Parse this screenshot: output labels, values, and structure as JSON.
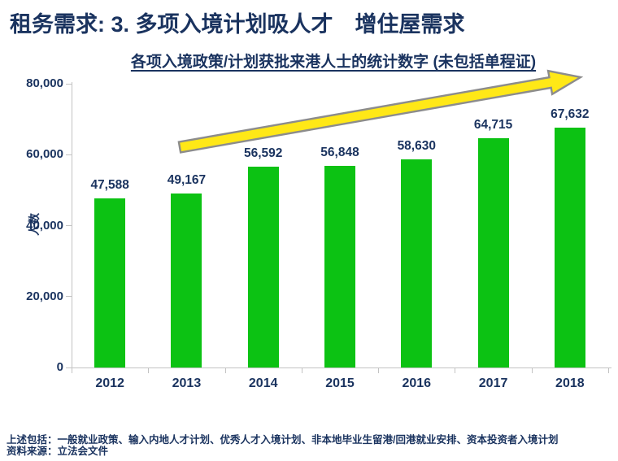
{
  "header": {
    "title": "租务需求: 3. 多项入境计划吸人才　增住屋需求"
  },
  "chart_data": {
    "type": "bar",
    "title": "各项入境政策/计划获批来港人士的统计数字 (未包括单程证)",
    "categories": [
      "2012",
      "2013",
      "2014",
      "2015",
      "2016",
      "2017",
      "2018"
    ],
    "values": [
      47588,
      49167,
      56592,
      56848,
      58630,
      64715,
      67632
    ],
    "value_labels": [
      "47,588",
      "49,167",
      "56,592",
      "56,848",
      "58,630",
      "64,715",
      "67,632"
    ],
    "xlabel": "",
    "ylabel": "人数",
    "ylim": [
      0,
      80000
    ],
    "yticks": [
      0,
      20000,
      40000,
      60000,
      80000
    ],
    "ytick_labels": [
      "0",
      "20,000",
      "40,000",
      "60,000",
      "80,000"
    ],
    "grid": false,
    "legend": false,
    "bar_color": "#0CC213",
    "annotation": {
      "type": "upward-trend-arrow",
      "fill": "#FFE817",
      "stroke": "#8C8C8C"
    }
  },
  "footer": {
    "note": "上述包括：一般就业政策、输入内地人才计划、优秀人才入境计划、非本地毕业生留港/回港就业安排、资本投资者入境计划",
    "source": "资料来源：立法会文件"
  },
  "colors": {
    "text": "#1A335F",
    "axis": "#C3C3C3"
  }
}
